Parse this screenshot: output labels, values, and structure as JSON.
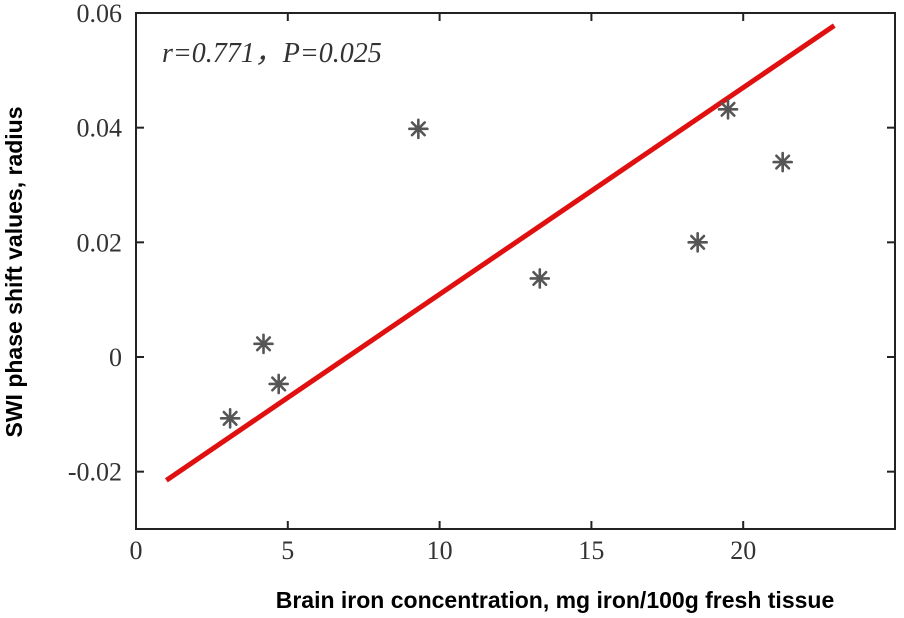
{
  "chart_data": {
    "type": "scatter",
    "xlabel": "Brain iron concentration, mg iron/100g fresh tissue",
    "ylabel": "SWI phase shift values, radius",
    "xlim": [
      0,
      25
    ],
    "ylim": [
      -0.03,
      0.06
    ],
    "x_ticks": [
      "0",
      "5",
      "10",
      "15",
      "20"
    ],
    "y_ticks": [
      "0.06",
      "0.04",
      "0.02",
      "0",
      "-0.02"
    ],
    "annotation": "r=0.771，P=0.025",
    "grid": false,
    "marker_color": "#555555",
    "fit_color": "#e01010",
    "points": [
      {
        "x": 3.1,
        "y": -0.0107
      },
      {
        "x": 4.2,
        "y": 0.0023
      },
      {
        "x": 4.7,
        "y": -0.0047
      },
      {
        "x": 9.3,
        "y": 0.0398
      },
      {
        "x": 13.3,
        "y": 0.0137
      },
      {
        "x": 18.5,
        "y": 0.02
      },
      {
        "x": 19.5,
        "y": 0.0432
      },
      {
        "x": 21.3,
        "y": 0.034
      }
    ],
    "fit_line": {
      "x": [
        1.0,
        23.0
      ],
      "y": [
        -0.0215,
        0.0578
      ]
    }
  }
}
